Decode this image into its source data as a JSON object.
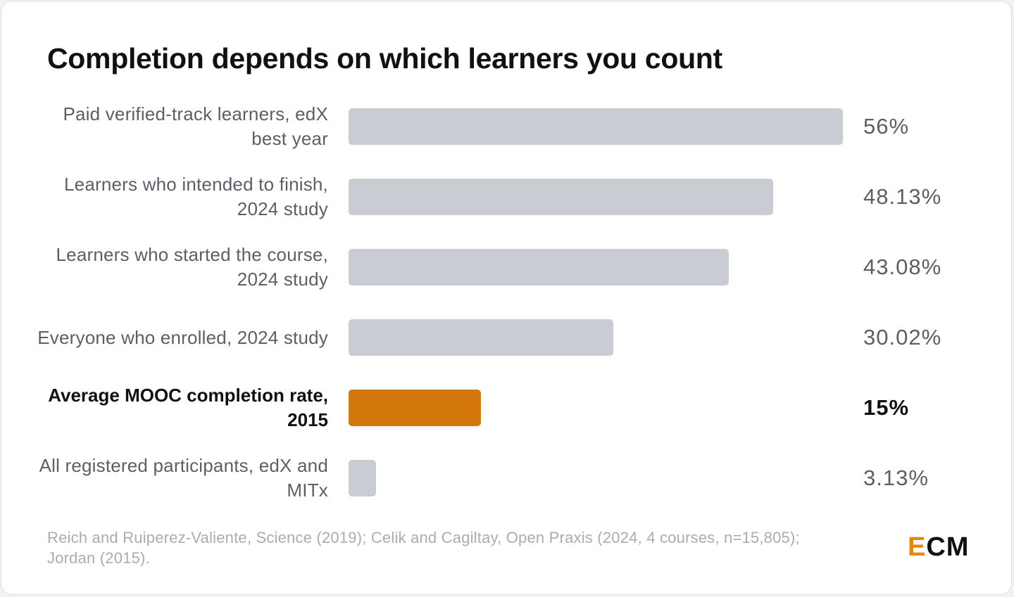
{
  "chart_data": {
    "type": "bar",
    "orientation": "horizontal",
    "title": "Completion depends on which learners you count",
    "categories": [
      "Paid verified-track learners, edX best year",
      "Learners who intended to finish, 2024 study",
      "Learners who started the course, 2024 study",
      "Everyone who enrolled, 2024 study",
      "Average MOOC completion rate, 2015",
      "All registered participants, edX and MITx"
    ],
    "values": [
      56,
      48.13,
      43.08,
      30.02,
      15,
      3.13
    ],
    "value_labels": [
      "56%",
      "48.13%",
      "43.08%",
      "30.02%",
      "15%",
      "3.13%"
    ],
    "highlighted_index": 4,
    "xlim": [
      0,
      56
    ],
    "xlabel": "",
    "ylabel": "",
    "grid": false,
    "legend": "none",
    "colors": {
      "bar": "#c9ccd3",
      "highlight": "#d4770c",
      "label": "#5b5f66",
      "highlight_label": "#111111"
    }
  },
  "source": "Reich and Ruiperez-Valiente, Science (2019); Celik and Cagiltay, Open Praxis (2024, 4 courses, n=15,805); Jordan (2015).",
  "logo": {
    "first_letter": "E",
    "rest": "CM"
  }
}
